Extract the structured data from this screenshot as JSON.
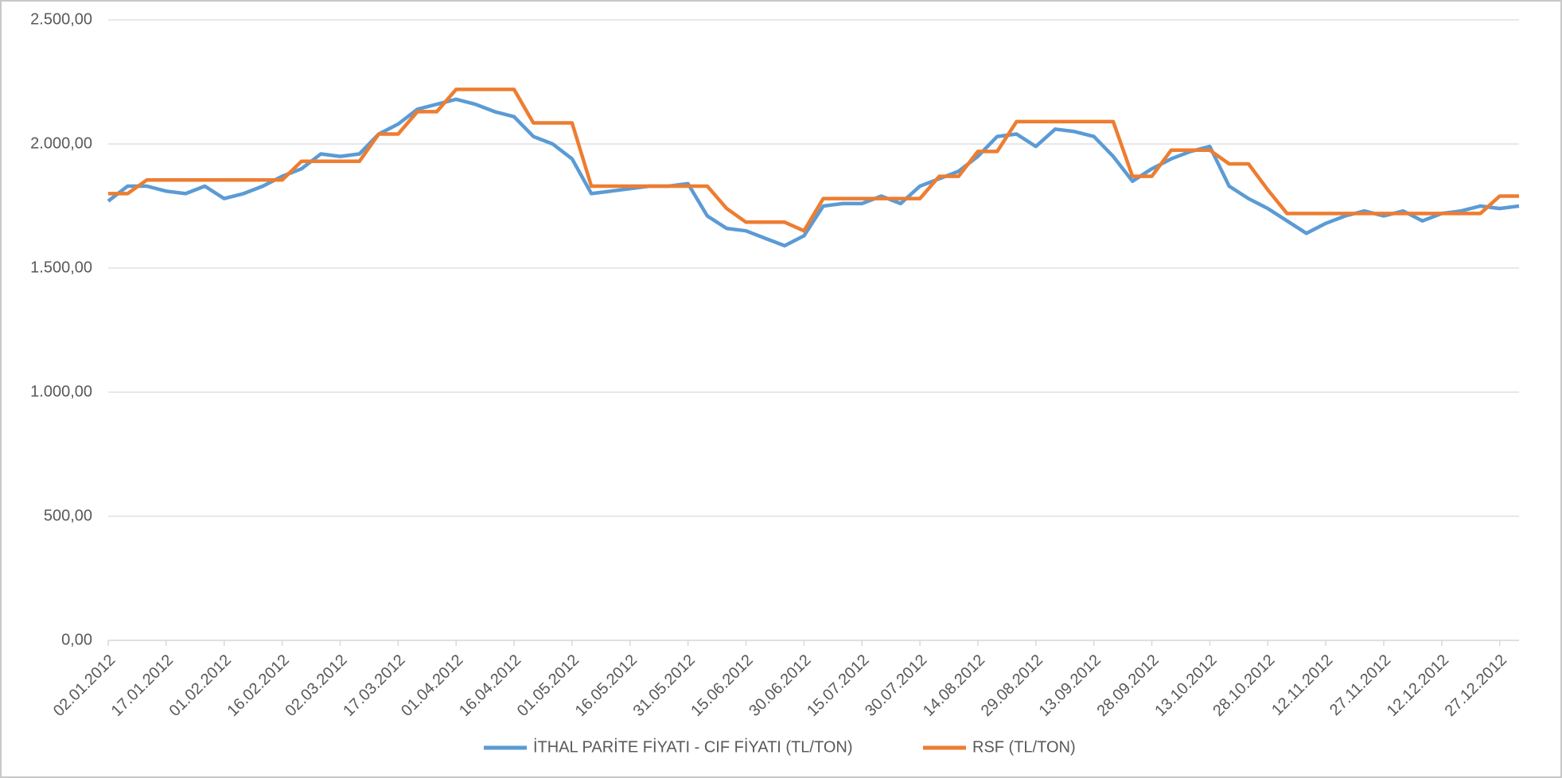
{
  "chart_data": {
    "type": "line",
    "categories": [
      "02.01.2012",
      null,
      null,
      "17.01.2012",
      null,
      null,
      "01.02.2012",
      null,
      null,
      "16.02.2012",
      null,
      null,
      "02.03.2012",
      null,
      null,
      "17.03.2012",
      null,
      null,
      "01.04.2012",
      null,
      null,
      "16.04.2012",
      null,
      null,
      "01.05.2012",
      null,
      null,
      "16.05.2012",
      null,
      null,
      "31.05.2012",
      null,
      null,
      "15.06.2012",
      null,
      null,
      "30.06.2012",
      null,
      null,
      "15.07.2012",
      null,
      null,
      "30.07.2012",
      null,
      null,
      "14.08.2012",
      null,
      null,
      "29.08.2012",
      null,
      null,
      "13.09.2012",
      null,
      null,
      "28.09.2012",
      null,
      null,
      "13.10.2012",
      null,
      null,
      "28.10.2012",
      null,
      null,
      "12.11.2012",
      null,
      null,
      "27.11.2012",
      null,
      null,
      "12.12.2012",
      null,
      null,
      "27.12.2012",
      null
    ],
    "series": [
      {
        "name": "İTHAL PARİTE FİYATI - CIF FİYATI (TL/TON)",
        "color": "#5b9bd5",
        "values": [
          1770,
          1830,
          1830,
          1810,
          1800,
          1830,
          1780,
          1800,
          1830,
          1870,
          1900,
          1960,
          1950,
          1960,
          2040,
          2080,
          2140,
          2160,
          2180,
          2160,
          2130,
          2110,
          2030,
          2000,
          1940,
          1800,
          1810,
          1820,
          1830,
          1830,
          1840,
          1710,
          1660,
          1650,
          1620,
          1590,
          1630,
          1750,
          1760,
          1760,
          1790,
          1760,
          1830,
          1860,
          1890,
          1950,
          2030,
          2040,
          1990,
          2060,
          2050,
          2030,
          1950,
          1850,
          1900,
          1940,
          1970,
          1990,
          1830,
          1780,
          1740,
          1690,
          1640,
          1680,
          1710,
          1730,
          1710,
          1730,
          1690,
          1720,
          1730,
          1750,
          1740,
          1750
        ]
      },
      {
        "name": "RSF (TL/TON)",
        "color": "#ed7d31",
        "values": [
          1800,
          1800,
          1855,
          1855,
          1855,
          1855,
          1855,
          1855,
          1855,
          1855,
          1930,
          1930,
          1930,
          1930,
          2040,
          2040,
          2130,
          2130,
          2220,
          2220,
          2220,
          2220,
          2085,
          2085,
          2085,
          1830,
          1830,
          1830,
          1830,
          1830,
          1830,
          1830,
          1740,
          1685,
          1685,
          1685,
          1650,
          1780,
          1780,
          1780,
          1780,
          1780,
          1780,
          1870,
          1870,
          1970,
          1970,
          2090,
          2090,
          2090,
          2090,
          2090,
          2090,
          1870,
          1870,
          1975,
          1975,
          1975,
          1920,
          1920,
          1815,
          1720,
          1720,
          1720,
          1720,
          1720,
          1720,
          1720,
          1720,
          1720,
          1720,
          1720,
          1790,
          1790
        ]
      }
    ],
    "ylim": [
      0,
      2500
    ],
    "yticks": [
      {
        "value": 0,
        "label": "0,00"
      },
      {
        "value": 500,
        "label": "500,00"
      },
      {
        "value": 1000,
        "label": "1.000,00"
      },
      {
        "value": 1500,
        "label": "1.500,00"
      },
      {
        "value": 2000,
        "label": "2.000,00"
      },
      {
        "value": 2500,
        "label": "2.500,00"
      }
    ],
    "grid": true,
    "legend": "bottom"
  }
}
